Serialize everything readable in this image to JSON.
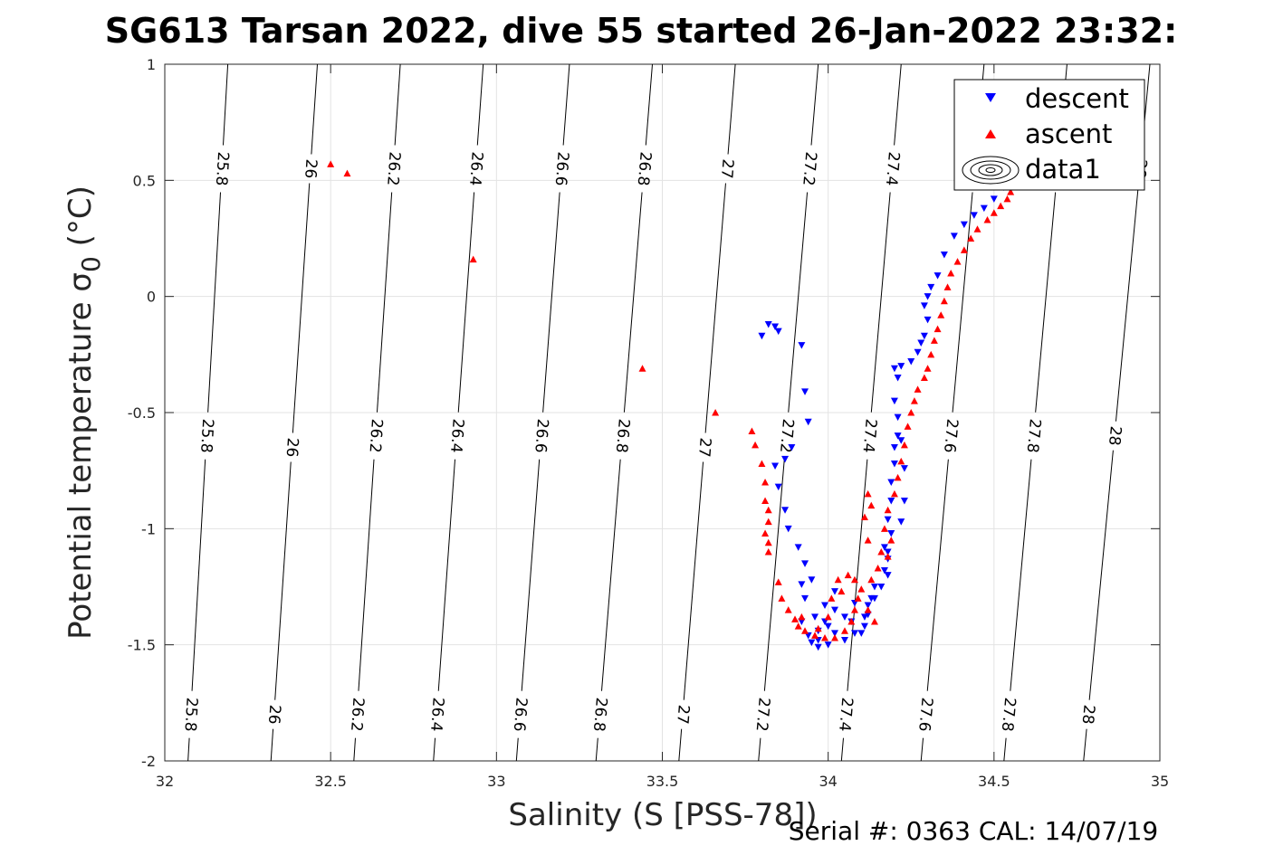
{
  "chart_data": {
    "type": "scatter",
    "title": "SG613 Tarsan 2022, dive 55 started 26-Jan-2022 23:32:",
    "xlabel_main": "Salinity (S [PSS-78])",
    "ylabel_main": "Potential temperature ",
    "ylabel_sym": "σ",
    "ylabel_sub": "0",
    "ylabel_unit": " (°C)",
    "footer": "Serial #: 0363  CAL: 14/07/19",
    "xlim": [
      32,
      35
    ],
    "ylim": [
      -2,
      1
    ],
    "xticks": [
      32,
      32.5,
      33,
      33.5,
      34,
      34.5,
      35
    ],
    "xtick_labels": [
      "32",
      "32.5",
      "33",
      "33.5",
      "34",
      "34.5",
      "35"
    ],
    "yticks": [
      -2,
      -1.5,
      -1,
      -0.5,
      0,
      0.5,
      1
    ],
    "ytick_labels": [
      "-2",
      "-1.5",
      "-1",
      "-0.5",
      "0",
      "0.5",
      "1"
    ],
    "grid": true,
    "legend_position": "top-right",
    "legend": [
      {
        "label": "descent",
        "marker": "triangle-down",
        "color": "#0000ff"
      },
      {
        "label": "ascent",
        "marker": "triangle-up",
        "color": "#ff0000"
      },
      {
        "label": "data1",
        "marker": "contour",
        "color": "#000000"
      }
    ],
    "contours": [
      {
        "label": "25.8",
        "points": [
          [
            32.07,
            -2
          ],
          [
            32.19,
            1
          ]
        ],
        "label_y": [
          0.55,
          -0.6,
          -1.8
        ]
      },
      {
        "label": "26",
        "points": [
          [
            32.32,
            -2
          ],
          [
            32.46,
            1
          ]
        ],
        "label_y": [
          0.55,
          -0.65,
          -1.8
        ]
      },
      {
        "label": "26.2",
        "points": [
          [
            32.57,
            -2
          ],
          [
            32.71,
            1
          ]
        ],
        "label_y": [
          0.55,
          -0.6,
          -1.8
        ]
      },
      {
        "label": "26.4",
        "points": [
          [
            32.81,
            -2
          ],
          [
            32.96,
            1
          ]
        ],
        "label_y": [
          0.55,
          -0.6,
          -1.8
        ]
      },
      {
        "label": "26.6",
        "points": [
          [
            33.06,
            -2
          ],
          [
            33.22,
            1
          ]
        ],
        "label_y": [
          0.55,
          -0.6,
          -1.8
        ]
      },
      {
        "label": "26.8",
        "points": [
          [
            33.3,
            -2
          ],
          [
            33.47,
            1
          ]
        ],
        "label_y": [
          0.55,
          -0.6,
          -1.8
        ]
      },
      {
        "label": "27",
        "points": [
          [
            33.55,
            -2
          ],
          [
            33.72,
            1
          ]
        ],
        "label_y": [
          0.55,
          -0.65,
          -1.8
        ]
      },
      {
        "label": "27.2",
        "points": [
          [
            33.79,
            -2
          ],
          [
            33.97,
            1
          ]
        ],
        "label_y": [
          0.55,
          -0.6,
          -1.8
        ]
      },
      {
        "label": "27.4",
        "points": [
          [
            34.04,
            -2
          ],
          [
            34.22,
            1
          ]
        ],
        "label_y": [
          0.55,
          -0.6,
          -1.8
        ]
      },
      {
        "label": "27.6",
        "points": [
          [
            34.28,
            -2
          ],
          [
            34.47,
            1
          ]
        ],
        "label_y": [
          0.55,
          -0.6,
          -1.8
        ]
      },
      {
        "label": "27.8",
        "points": [
          [
            34.53,
            -2
          ],
          [
            34.72,
            1
          ]
        ],
        "label_y": [
          0.55,
          -0.6,
          -1.8
        ]
      },
      {
        "label": "28",
        "points": [
          [
            34.77,
            -2
          ],
          [
            34.97,
            1
          ]
        ],
        "label_y": [
          0.55,
          -0.6,
          -1.8
        ]
      }
    ],
    "series": [
      {
        "name": "descent",
        "marker": "triangle-down",
        "color": "#0000ff",
        "points": [
          [
            34.53,
            0.47
          ],
          [
            34.5,
            0.42
          ],
          [
            34.47,
            0.38
          ],
          [
            34.44,
            0.35
          ],
          [
            34.41,
            0.31
          ],
          [
            34.38,
            0.26
          ],
          [
            34.35,
            0.18
          ],
          [
            34.33,
            0.09
          ],
          [
            34.31,
            0.04
          ],
          [
            34.3,
            0.0
          ],
          [
            34.29,
            -0.04
          ],
          [
            34.3,
            -0.1
          ],
          [
            34.29,
            -0.17
          ],
          [
            34.28,
            -0.2
          ],
          [
            34.27,
            -0.24
          ],
          [
            34.25,
            -0.28
          ],
          [
            34.22,
            -0.3
          ],
          [
            34.2,
            -0.31
          ],
          [
            34.21,
            -0.35
          ],
          [
            34.2,
            -0.45
          ],
          [
            34.21,
            -0.52
          ],
          [
            34.21,
            -0.6
          ],
          [
            34.2,
            -0.65
          ],
          [
            34.2,
            -0.72
          ],
          [
            34.19,
            -0.8
          ],
          [
            34.19,
            -0.88
          ],
          [
            34.18,
            -0.96
          ],
          [
            34.19,
            -1.02
          ],
          [
            34.17,
            -1.08
          ],
          [
            34.18,
            -1.13
          ],
          [
            34.18,
            -1.2
          ],
          [
            34.16,
            -1.25
          ],
          [
            34.14,
            -1.3
          ],
          [
            34.12,
            -1.33
          ],
          [
            34.12,
            -1.37
          ],
          [
            34.11,
            -1.42
          ],
          [
            34.08,
            -1.45
          ],
          [
            34.05,
            -1.48
          ],
          [
            34.0,
            -1.5
          ],
          [
            33.97,
            -1.51
          ],
          [
            33.95,
            -1.49
          ],
          [
            33.94,
            -1.46
          ],
          [
            33.97,
            -1.44
          ],
          [
            34.0,
            -1.42
          ],
          [
            34.02,
            -1.45
          ],
          [
            33.96,
            -1.38
          ],
          [
            33.99,
            -1.33
          ],
          [
            34.02,
            -1.35
          ],
          [
            34.05,
            -1.38
          ],
          [
            34.08,
            -1.32
          ],
          [
            34.11,
            -1.38
          ],
          [
            34.13,
            -1.3
          ],
          [
            33.92,
            -1.4
          ],
          [
            33.93,
            -1.3
          ],
          [
            33.92,
            -1.24
          ],
          [
            33.95,
            -1.22
          ],
          [
            33.93,
            -1.15
          ],
          [
            33.91,
            -1.08
          ],
          [
            33.88,
            -1.0
          ],
          [
            33.87,
            -0.92
          ],
          [
            33.85,
            -0.82
          ],
          [
            33.84,
            -0.73
          ],
          [
            33.87,
            -0.7
          ],
          [
            33.89,
            -0.65
          ],
          [
            33.8,
            -0.17
          ],
          [
            33.82,
            -0.12
          ],
          [
            33.84,
            -0.13
          ],
          [
            33.85,
            -0.15
          ],
          [
            33.92,
            -0.21
          ],
          [
            33.93,
            -0.41
          ],
          [
            33.94,
            -0.54
          ],
          [
            34.22,
            -0.62
          ],
          [
            34.23,
            -0.74
          ],
          [
            34.23,
            -0.88
          ],
          [
            34.22,
            -0.97
          ],
          [
            34.18,
            -1.1
          ],
          [
            34.17,
            -1.18
          ],
          [
            34.14,
            -1.25
          ],
          [
            34.02,
            -1.27
          ],
          [
            33.99,
            -1.4
          ],
          [
            33.97,
            -1.48
          ],
          [
            34.07,
            -1.4
          ],
          [
            34.1,
            -1.45
          ]
        ]
      },
      {
        "name": "ascent",
        "marker": "triangle-up",
        "color": "#ff0000",
        "points": [
          [
            32.5,
            0.57
          ],
          [
            32.55,
            0.53
          ],
          [
            32.93,
            0.16
          ],
          [
            33.44,
            -0.31
          ],
          [
            33.66,
            -0.5
          ],
          [
            33.77,
            -0.58
          ],
          [
            33.78,
            -0.64
          ],
          [
            33.8,
            -0.72
          ],
          [
            33.81,
            -0.8
          ],
          [
            33.81,
            -0.88
          ],
          [
            33.82,
            -0.92
          ],
          [
            33.82,
            -0.97
          ],
          [
            33.81,
            -1.02
          ],
          [
            33.82,
            -1.06
          ],
          [
            33.82,
            -1.1
          ],
          [
            33.85,
            -1.23
          ],
          [
            33.86,
            -1.3
          ],
          [
            33.88,
            -1.35
          ],
          [
            33.9,
            -1.39
          ],
          [
            33.91,
            -1.42
          ],
          [
            33.93,
            -1.44
          ],
          [
            33.96,
            -1.46
          ],
          [
            33.99,
            -1.47
          ],
          [
            34.02,
            -1.47
          ],
          [
            34.05,
            -1.44
          ],
          [
            34.07,
            -1.4
          ],
          [
            34.08,
            -1.35
          ],
          [
            34.09,
            -1.3
          ],
          [
            34.1,
            -1.26
          ],
          [
            34.08,
            -1.22
          ],
          [
            34.06,
            -1.2
          ],
          [
            34.03,
            -1.22
          ],
          [
            34.04,
            -1.27
          ],
          [
            34.13,
            -1.22
          ],
          [
            34.15,
            -1.17
          ],
          [
            34.16,
            -1.1
          ],
          [
            34.17,
            -1.0
          ],
          [
            34.18,
            -0.92
          ],
          [
            34.2,
            -0.85
          ],
          [
            34.21,
            -0.78
          ],
          [
            34.22,
            -0.71
          ],
          [
            34.23,
            -0.64
          ],
          [
            34.24,
            -0.56
          ],
          [
            34.25,
            -0.5
          ],
          [
            34.26,
            -0.45
          ],
          [
            34.27,
            -0.4
          ],
          [
            34.29,
            -0.35
          ],
          [
            34.3,
            -0.31
          ],
          [
            34.31,
            -0.25
          ],
          [
            34.32,
            -0.19
          ],
          [
            34.33,
            -0.14
          ],
          [
            34.34,
            -0.08
          ],
          [
            34.35,
            -0.02
          ],
          [
            34.36,
            0.04
          ],
          [
            34.37,
            0.1
          ],
          [
            34.39,
            0.15
          ],
          [
            34.41,
            0.2
          ],
          [
            34.43,
            0.25
          ],
          [
            34.45,
            0.29
          ],
          [
            34.48,
            0.33
          ],
          [
            34.5,
            0.36
          ],
          [
            34.52,
            0.39
          ],
          [
            34.54,
            0.42
          ],
          [
            34.55,
            0.45
          ],
          [
            34.12,
            -0.85
          ],
          [
            34.11,
            -0.95
          ],
          [
            34.12,
            -1.05
          ],
          [
            34.13,
            -0.9
          ],
          [
            34.19,
            -1.05
          ],
          [
            34.18,
            -1.12
          ],
          [
            34.12,
            -1.35
          ],
          [
            34.14,
            -1.4
          ],
          [
            34.0,
            -1.38
          ],
          [
            34.01,
            -1.3
          ],
          [
            33.97,
            -1.43
          ],
          [
            33.92,
            -1.38
          ]
        ]
      }
    ]
  }
}
